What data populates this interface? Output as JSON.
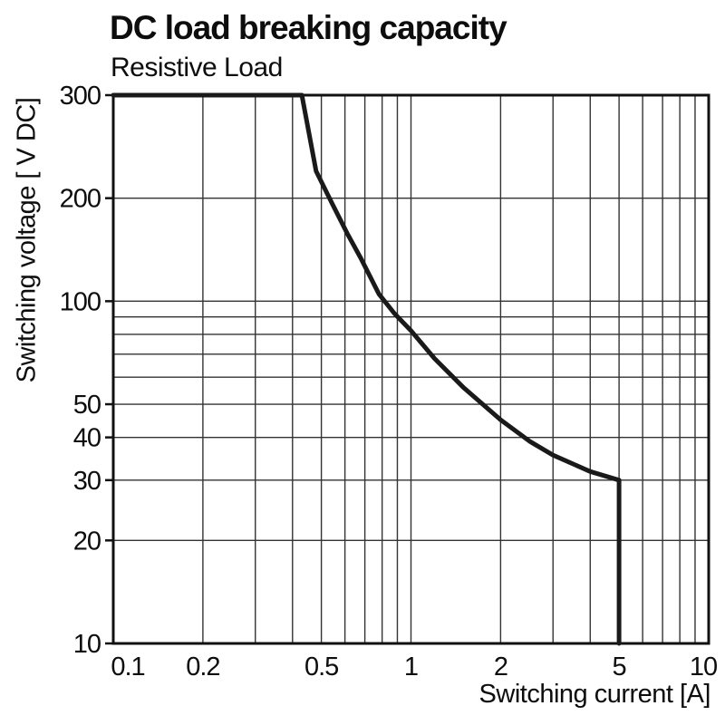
{
  "colors": {
    "background": "#ffffff",
    "text": "#0d0d0d",
    "curve": "#1a1a1a",
    "grid": "#333333",
    "frame": "#111111"
  },
  "chart_data": {
    "type": "line",
    "title": "DC load breaking capacity",
    "subtitle": "Resistive Load",
    "xlabel": "Switching current [A]",
    "ylabel": "Switching voltage [ V DC]",
    "x_axis": {
      "scale": "log",
      "min": 0.1,
      "max": 10,
      "tick_values": [
        0.1,
        0.2,
        0.5,
        1,
        2,
        5,
        10
      ],
      "tick_labels": [
        "0.1",
        "0.2",
        "0.5",
        "1",
        "2",
        "5",
        "10"
      ],
      "gridline_values": [
        0.2,
        0.3,
        0.4,
        0.5,
        0.6,
        0.7,
        0.8,
        0.9,
        1,
        2,
        3,
        4,
        5,
        6,
        7,
        8,
        9
      ]
    },
    "y_axis": {
      "scale": "log",
      "min": 10,
      "max": 300,
      "tick_values": [
        300,
        200,
        100,
        50,
        40,
        30,
        20,
        10
      ],
      "tick_labels": [
        "300",
        "200",
        "100",
        "50",
        "40",
        "30",
        "20",
        "10"
      ],
      "gridline_values": [
        20,
        30,
        40,
        50,
        60,
        70,
        80,
        90,
        100,
        200
      ]
    },
    "grid": "on",
    "legend": "none",
    "series": [
      {
        "name": "Resistive Load",
        "color": "#1a1a1a",
        "points": [
          [
            0.1,
            300
          ],
          [
            0.43,
            300
          ],
          [
            0.48,
            240
          ],
          [
            0.54,
            195
          ],
          [
            0.61,
            158
          ],
          [
            0.68,
            133
          ],
          [
            0.78,
            105
          ],
          [
            0.88,
            92
          ],
          [
            1.0,
            82
          ],
          [
            1.2,
            68
          ],
          [
            1.5,
            56
          ],
          [
            2.0,
            45
          ],
          [
            2.5,
            39
          ],
          [
            3.0,
            35.5
          ],
          [
            4.0,
            31.8
          ],
          [
            5.0,
            30
          ],
          [
            5.0,
            10
          ]
        ]
      }
    ]
  }
}
